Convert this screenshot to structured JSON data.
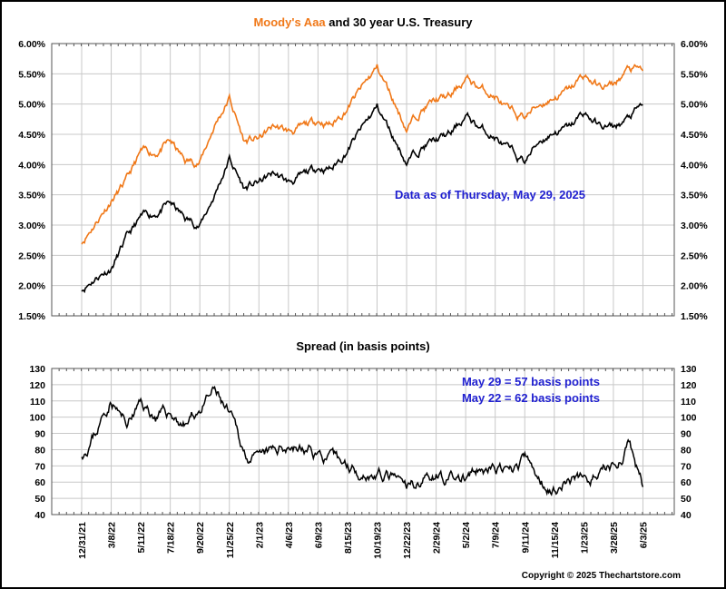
{
  "chart_data": [
    {
      "type": "line",
      "title_parts": [
        "Moody's Aaa",
        " and 30 year U.S. Treasury"
      ],
      "annotation": "Data as of Thursday, May 29, 2025",
      "ylabel": "",
      "ylim": [
        1.5,
        6.0
      ],
      "yticks": [
        "1.50%",
        "2.00%",
        "2.50%",
        "3.00%",
        "3.50%",
        "4.00%",
        "4.50%",
        "5.00%",
        "5.50%",
        "6.00%"
      ],
      "x_tick_index_step": 0.5,
      "series": [
        {
          "name": "30 year U.S. Treasury",
          "color": "#000000",
          "values": [
            1.95,
            2.15,
            2.3,
            2.75,
            3.1,
            3.2,
            3.35,
            3.1,
            3.0,
            3.5,
            4.1,
            3.6,
            3.7,
            3.85,
            3.7,
            3.8,
            3.95,
            3.95,
            4.25,
            4.6,
            4.95,
            4.5,
            4.05,
            4.3,
            4.4,
            4.5,
            4.8,
            4.6,
            4.45,
            4.2,
            4.05,
            4.4,
            4.55,
            4.6,
            4.85,
            4.65,
            4.6,
            4.75,
            4.98
          ]
        },
        {
          "name": "Moody's Aaa",
          "color": "#f07818",
          "values": [
            2.73,
            3.07,
            3.42,
            3.7,
            4.18,
            4.2,
            4.37,
            4.05,
            4.05,
            4.65,
            5.1,
            4.38,
            4.42,
            4.63,
            4.54,
            4.6,
            4.73,
            4.67,
            4.95,
            5.27,
            5.6,
            5.12,
            4.6,
            4.92,
            5.06,
            5.12,
            5.42,
            5.26,
            5.13,
            4.84,
            4.79,
            5.0,
            5.12,
            5.22,
            5.47,
            5.29,
            5.3,
            5.57,
            5.55
          ]
        }
      ]
    },
    {
      "type": "line",
      "title": "Spread (in basis points)",
      "annotations": [
        "May 29 = 57 basis points",
        "May 22 = 62 basis points"
      ],
      "ylim": [
        40,
        130
      ],
      "yticks": [
        "40",
        "50",
        "60",
        "70",
        "80",
        "90",
        "100",
        "110",
        "120",
        "130"
      ],
      "series": [
        {
          "name": "Spread",
          "color": "#000000",
          "values": [
            78,
            92,
            112,
            95,
            108,
            100,
            102,
            95,
            105,
            115,
            100,
            78,
            72,
            78,
            84,
            80,
            78,
            72,
            70,
            67,
            65,
            62,
            55,
            62,
            66,
            62,
            62,
            66,
            68,
            64,
            74,
            60,
            57,
            62,
            62,
            64,
            70,
            82,
            57
          ]
        }
      ]
    }
  ],
  "x_labels": [
    "12/31/21",
    "3/8/22",
    "5/11/22",
    "7/18/22",
    "9/20/22",
    "11/25/22",
    "2/1/23",
    "4/6/23",
    "6/9/23",
    "8/15/23",
    "10/19/23",
    "12/22/23",
    "2/29/24",
    "5/2/24",
    "7/9/24",
    "9/11/24",
    "11/15/24",
    "1/23/25",
    "3/28/25",
    "6/3/25"
  ],
  "copyright": "Copyright © 2025 Thechartstore.com",
  "colors": {
    "aaa": "#f07818",
    "treasury": "#000000",
    "annotation": "#2020d0",
    "grid": "#c8c8c8"
  }
}
